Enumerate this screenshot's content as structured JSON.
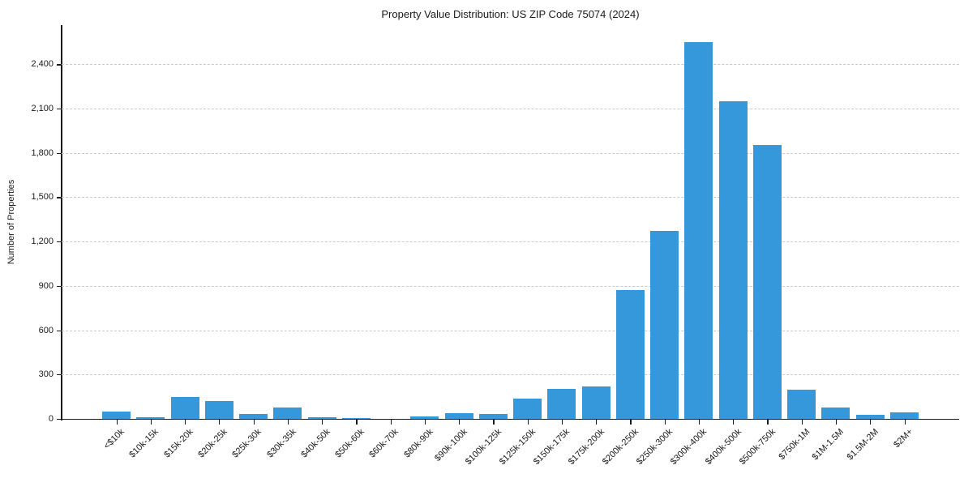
{
  "chart_data": {
    "type": "bar",
    "title": "Property Value Distribution: US ZIP Code 75074 (2024)",
    "xlabel": "",
    "ylabel": "Number of Properties",
    "categories": [
      "<$10k",
      "$10k-15k",
      "$15k-20k",
      "$20k-25k",
      "$25k-30k",
      "$30k-35k",
      "$40k-50k",
      "$50k-60k",
      "$60k-70k",
      "$80k-90k",
      "$90k-100k",
      "$100k-125k",
      "$125k-150k",
      "$150k-175k",
      "$175k-200k",
      "$200k-250k",
      "$250k-300k",
      "$300k-400k",
      "$400k-500k",
      "$500k-750k",
      "$750k-1M",
      "$1M-1.5M",
      "$1.5M-2M",
      "$2M+"
    ],
    "values": [
      50,
      12,
      150,
      118,
      35,
      78,
      12,
      8,
      2,
      18,
      38,
      32,
      135,
      205,
      222,
      870,
      1272,
      2548,
      2150,
      1852,
      196,
      75,
      26,
      44
    ],
    "ylim": [
      0,
      2665
    ],
    "yticks": [
      0,
      300,
      600,
      900,
      1200,
      1500,
      1800,
      2100,
      2400
    ],
    "ytick_labels": [
      "0",
      "300",
      "600",
      "900",
      "1,200",
      "1,500",
      "1,800",
      "2,100",
      "2,400"
    ],
    "grid": "horizontal-dashed",
    "legend_position": "none",
    "bar_color": "#3498db",
    "gridline_color": "#c9c9c9",
    "axis_color": "#1a1a1a"
  }
}
